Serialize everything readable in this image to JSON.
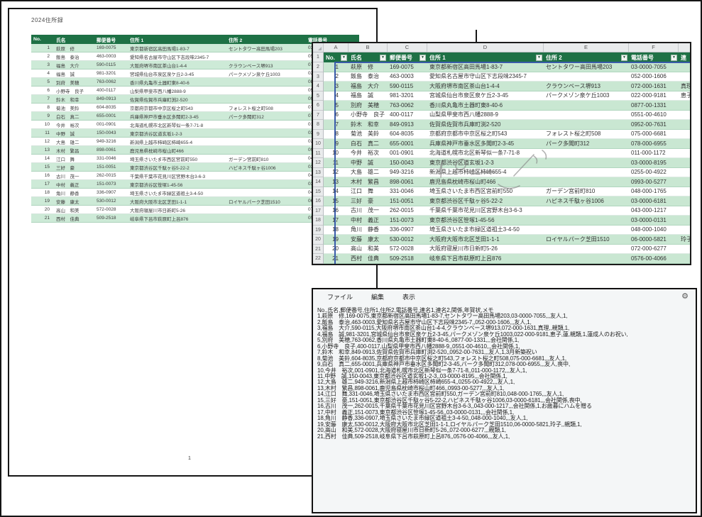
{
  "document": {
    "title": "2024住所録",
    "page_number": "1",
    "headers": [
      "No.",
      "氏名",
      "郵便番号",
      "住所 1",
      "住所 2",
      "電話番号"
    ]
  },
  "spreadsheet": {
    "column_letters": [
      "A",
      "B",
      "C",
      "D",
      "E",
      "F"
    ],
    "partial_column_letter": "",
    "headers": [
      "No.",
      "氏名",
      "郵便番号",
      "住所 1",
      "住所 2",
      "電話番号"
    ],
    "partial_header": "連",
    "filter_icon": "▼",
    "row_count": 22,
    "accent_colors": {
      "header_green": "#1e7145",
      "band_green": "#c9e7d2",
      "selection_blue": "#3a5ba9"
    }
  },
  "records": [
    {
      "no": "1",
      "name": "萩原　修",
      "zip": "169-0075",
      "addr1": "東京都新宿区高田馬場1-83-7",
      "addr2": "セントタワー高田馬場203",
      "phone": "03-0000-7055",
      "renmei1": ""
    },
    {
      "no": "2",
      "name": "飯島　泰治",
      "zip": "463-0003",
      "addr1": "愛知県名古屋市守山区下志段味2345-7",
      "addr2": "",
      "phone": "052-000-1606",
      "renmei1": ""
    },
    {
      "no": "3",
      "name": "福島　大介",
      "zip": "590-0115",
      "addr1": "大阪府堺市南区茶山台1-4-4",
      "addr2": "クラウンベース堺913",
      "phone": "072-000-1631",
      "renmei1": "真理"
    },
    {
      "no": "4",
      "name": "福島　誠",
      "zip": "981-3201",
      "addr1": "宮城県仙台市泉区泉ケ丘2-3-45",
      "addr2": "パークメゾン泉ケ丘1003",
      "phone": "022-000-9181",
      "renmei1": "恵子"
    },
    {
      "no": "5",
      "name": "別府　美穂",
      "zip": "763-0062",
      "addr1": "香川県丸亀市土器町東8-40-6",
      "addr2": "",
      "phone": "0877-00-1331",
      "renmei1": ""
    },
    {
      "no": "6",
      "name": "小野寺　良子",
      "zip": "400-0117",
      "addr1": "山梨県甲斐市西八幡2888-9",
      "addr2": "",
      "phone": "0551-00-4610",
      "renmei1": ""
    },
    {
      "no": "7",
      "name": "鈴木　和幸",
      "zip": "849-0913",
      "addr1": "佐賀県佐賀市兵庫町渕2-520",
      "addr2": "",
      "phone": "0952-00-7631",
      "renmei1": ""
    },
    {
      "no": "8",
      "name": "菊池　美鈴",
      "zip": "604-8035",
      "addr1": "京都府京都市中京区桜之町543",
      "addr2": "フォレスト桜之町508",
      "phone": "075-000-6681",
      "renmei1": ""
    },
    {
      "no": "9",
      "name": "白石　真二",
      "zip": "655-0001",
      "addr1": "兵庫県神戸市垂水区多聞町2-3-45",
      "addr2": "パーク多聞町312",
      "phone": "078-000-6955",
      "renmei1": ""
    },
    {
      "no": "10",
      "name": "今井　裕次",
      "zip": "001-0901",
      "addr1": "北海道札幌市北区新琴似一条7-71-8",
      "addr2": "",
      "phone": "011-000-1172",
      "renmei1": ""
    },
    {
      "no": "11",
      "name": "中野　誠",
      "zip": "150-0043",
      "addr1": "東京都渋谷区道玄坂1-2-3",
      "addr2": "",
      "phone": "03-0000-8195",
      "renmei1": ""
    },
    {
      "no": "12",
      "name": "大島　雄二",
      "zip": "949-3216",
      "addr1": "新潟県上越市柿崎区柿崎655-4",
      "addr2": "",
      "phone": "0255-00-4922",
      "renmei1": ""
    },
    {
      "no": "13",
      "name": "木村　繁昌",
      "zip": "898-0061",
      "addr1": "鹿児島県枕崎市桜山町466",
      "addr2": "",
      "phone": "0993-00-5277",
      "renmei1": ""
    },
    {
      "no": "14",
      "name": "江口　舞",
      "zip": "331-0046",
      "addr1": "埼玉県さいたま市西区宮前町550",
      "addr2": "ガーデン宮前町810",
      "phone": "048-000-1765",
      "renmei1": ""
    },
    {
      "no": "15",
      "name": "三好　豪",
      "zip": "151-0051",
      "addr1": "東京都渋谷区千駄ヶ谷5-22-2",
      "addr2": "ハピネス千駄ヶ谷1006",
      "phone": "03-0000-6181",
      "renmei1": ""
    },
    {
      "no": "16",
      "name": "古川　茂一",
      "zip": "262-0015",
      "addr1": "千葉県千葉市花見川区宮野木台3-6-3",
      "addr2": "",
      "phone": "043-000-1217",
      "renmei1": ""
    },
    {
      "no": "17",
      "name": "中村　義正",
      "zip": "151-0073",
      "addr1": "東京都渋谷区笹塚1-45-56",
      "addr2": "",
      "phone": "03-0000-0131",
      "renmei1": ""
    },
    {
      "no": "18",
      "name": "角川　静香",
      "zip": "336-0907",
      "addr1": "埼玉県さいたま市緑区道祖土3-4-50",
      "addr2": "",
      "phone": "048-000-1040",
      "renmei1": ""
    },
    {
      "no": "19",
      "name": "安藤　康太",
      "zip": "530-0012",
      "addr1": "大阪府大阪市北区芝田1-1-1",
      "addr2": "ロイヤルパーク芝田1510",
      "phone": "06-0000-5821",
      "renmei1": "玲子"
    },
    {
      "no": "20",
      "name": "高山　和美",
      "zip": "572-0028",
      "addr1": "大阪府寝屋川市日新町5-26",
      "addr2": "",
      "phone": "072-000-6277",
      "renmei1": ""
    },
    {
      "no": "21",
      "name": "西村　佳典",
      "zip": "509-2518",
      "addr1": "岐阜県下呂市萩原町上呂876",
      "addr2": "",
      "phone": "0576-00-4066",
      "renmei1": ""
    }
  ],
  "editor": {
    "menu_items": [
      "ファイル",
      "編集",
      "表示"
    ],
    "gear_icon": "⚙",
    "lines": [
      "No.,氏名,郵便番号,住所1,住所2,電話番号,連名1,連名2,関係,年賀状,メモ",
      "1,萩原　修,169-0075,東京都新宿区高田馬場1-83-7,セントタワー高田馬場203,03-0000-7055,,,友人,1,",
      "2,飯島　泰治,463-0003,愛知県名古屋市守山区下志段味2345-7,,052-000-1606,,,友人,1,",
      "3,福島　大介,590-0115,大阪府堺市南区茶山台1-4-4,クラウンベース堺913,072-000-1631,真理,,親類,1,",
      "4,福島　誠,981-3201,宮城県仙台市泉区泉ケ丘2-3-45,パークメゾン泉ケ丘1003,022-000-9181,恵子,蓮,親類,1,蓮成人のお祝い,",
      "5,別府　美穂,763-0062,香川県丸亀市土器町東8-40-6,,0877-00-1331,,,会社関係,1,",
      "6,小野寺　良子,400-0117,山梨県甲斐市西八幡2888-9,,0551-00-4610,,,会社関係,1,",
      "7,鈴木　和幸,849-0913,佐賀県佐賀市兵庫町渕2-520,,0952-00-7631,,,友人,1,3月新築祝い",
      "8,菊池　美鈴,604-8035,京都府京都市中京区桜之町543,フォレスト桜之町508,075-000-6681,,,友人,1,",
      "9,白石　真二,655-0001,兵庫県神戸市垂水区多聞町2-3-45,パーク多聞町312,078-000-6955,,,友人,喪中,",
      "10,今井　裕次,001-0901,北海道札幌市北区新琴似一条7-71-8,,011-000-1172,,,友人,1,",
      "11,中野　誠,150-0043,東京都渋谷区道玄坂1-2-3,,03-0000-8195,,,会社関係,1,",
      "12,大島　雄二,949-3216,新潟県上越市柿崎区柿崎655-4,,0255-00-4922,,,友人,1,",
      "13,木村　繁昌,898-0061,鹿児島県枕崎市桜山町466,,0993-00-5277,,,友人,1,",
      "14,江口　舞,331-0046,埼玉県さいたま市西区宮前町550,ガーデン宮前町810,048-000-1765,,,友人,1,",
      "15,三好　豪,151-0051,東京都渋谷区千駄ヶ谷5-22-2,ハピネス千駄ヶ谷1006,03-0000-6181,,,会社関係,喪中,",
      "16,古川　茂一,262-0015,千葉県千葉市花見川区宮野木台3-6-3,,043-000-1217,,,会社関係,1,お歳暮にハムを贈る",
      "17,中村　義正,151-0073,東京都渋谷区笹塚1-45-56,,03-0000-0131,,,会社関係,1,",
      "18,角川　静香,336-0907,埼玉県さいたま市緑区道祖土3-4-50,,048-000-1040,,,友人,1,",
      "19,安藤　康太,530-0012,大阪府大阪市北区芝田1-1-1,ロイヤルパーク芝田1510,06-0000-5821,玲子,,親類,1,",
      "20,高山　和美,572-0028,大阪府寝屋川市日新町5-26,,072-000-6277,,,親類,1,",
      "21,西村　佳典,509-2518,岐阜県下呂市萩原町上呂876,,0576-00-4066,,,友人,1,"
    ]
  }
}
